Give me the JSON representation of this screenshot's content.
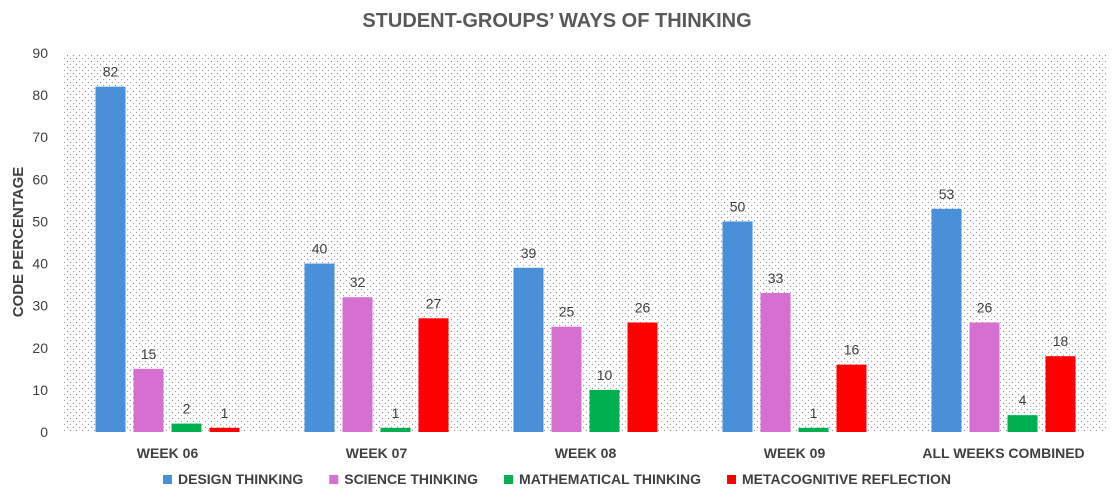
{
  "chart_data": {
    "type": "bar",
    "title": "STUDENT-GROUPS’ WAYS OF THINKING",
    "xlabel": "",
    "ylabel": "CODE PERCENTAGE",
    "ylim": [
      0,
      90
    ],
    "yticks": [
      0,
      10,
      20,
      30,
      40,
      50,
      60,
      70,
      80,
      90
    ],
    "categories": [
      "WEEK 06",
      "WEEK 07",
      "WEEK 08",
      "WEEK 09",
      "ALL WEEKS COMBINED"
    ],
    "series": [
      {
        "name": "DESIGN THINKING",
        "color": "#4a90d9",
        "values": [
          82,
          40,
          39,
          50,
          53
        ]
      },
      {
        "name": "SCIENCE THINKING",
        "color": "#d670d0",
        "values": [
          15,
          32,
          25,
          33,
          26
        ]
      },
      {
        "name": "MATHEMATICAL THINKING",
        "color": "#00b050",
        "values": [
          2,
          1,
          10,
          1,
          4
        ]
      },
      {
        "name": "METACOGNITIVE REFLECTION",
        "color": "#ff0000",
        "values": [
          1,
          27,
          26,
          16,
          18
        ]
      }
    ],
    "grid": false,
    "plot_background": "dotted",
    "legend_position": "bottom",
    "data_labels": true
  }
}
